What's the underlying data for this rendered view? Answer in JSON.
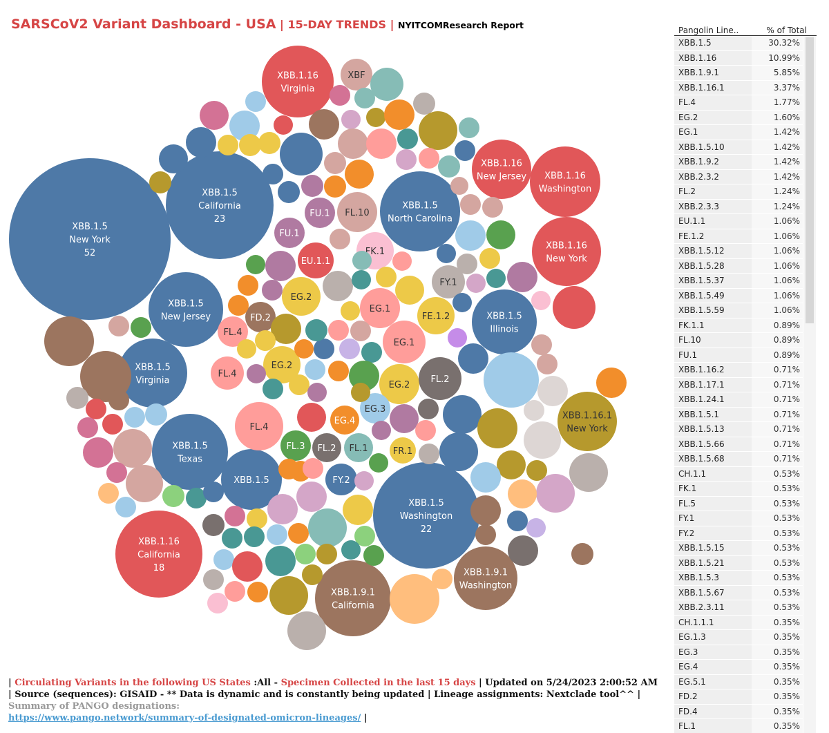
{
  "title": {
    "main": "SARSCoV2 Variant Dashboard - USA",
    "sep1": " | ",
    "trends": "15-DAY TRENDS",
    "sep2": " | ",
    "report": "NYITCOMResearch Report"
  },
  "colors": {
    "blue": "#4e79a7",
    "red": "#e15759",
    "mauve": "#b07aa1",
    "salmon": "#ff9d9a",
    "pink": "#fabfd2",
    "tan": "#d4a6a0",
    "yellow": "#edc948",
    "orange": "#f28e2b",
    "olive": "#b6992d",
    "brown": "#9c755f",
    "teal": "#499894",
    "green": "#59a14f",
    "gray": "#bab0ac",
    "darkgray": "#79706e",
    "lightblue": "#a0cbe8",
    "aqua": "#86bcb6",
    "lightgreen": "#8cd17d",
    "peach": "#ffbe7d",
    "purple": "#d4a6c8",
    "lavender": "#c7b3e6",
    "violet": "#c58ce8",
    "dustpink": "#d37295",
    "lightgray": "#ddd6d4"
  },
  "chart_data": {
    "type": "bubble",
    "labeled_bubbles": [
      {
        "variant": "XBB.1.5",
        "state": "New York",
        "count": "52",
        "color": "blue"
      },
      {
        "variant": "XBB.1.5",
        "state": "California",
        "count": "23",
        "color": "blue"
      },
      {
        "variant": "XBB.1.5",
        "state": "Washington",
        "count": "22",
        "color": "blue"
      },
      {
        "variant": "XBB.1.16",
        "state": "California",
        "count": "18",
        "color": "red"
      },
      {
        "variant": "XBB.1.5",
        "state": "North Carolina",
        "count": "",
        "color": "blue"
      },
      {
        "variant": "XBB.1.5",
        "state": "New Jersey",
        "count": "",
        "color": "blue"
      },
      {
        "variant": "XBB.1.5",
        "state": "Virginia",
        "count": "",
        "color": "blue"
      },
      {
        "variant": "XBB.1.5",
        "state": "Texas",
        "count": "",
        "color": "blue"
      },
      {
        "variant": "XBB.1.5",
        "state": "Illinois",
        "count": "",
        "color": "blue"
      },
      {
        "variant": "XBB.1.5",
        "state": "",
        "count": "",
        "color": "blue"
      },
      {
        "variant": "XBB.1.16",
        "state": "Virginia",
        "count": "",
        "color": "red"
      },
      {
        "variant": "XBB.1.16",
        "state": "New Jersey",
        "count": "",
        "color": "red"
      },
      {
        "variant": "XBB.1.16",
        "state": "Washington",
        "count": "",
        "color": "red"
      },
      {
        "variant": "XBB.1.16",
        "state": "New York",
        "count": "",
        "color": "red"
      },
      {
        "variant": "XBB.1.16.1",
        "state": "New York",
        "count": "",
        "color": "olive"
      },
      {
        "variant": "XBB.1.9.1",
        "state": "California",
        "count": "",
        "color": "brown"
      },
      {
        "variant": "XBB.1.9.1",
        "state": "Washington",
        "count": "",
        "color": "brown"
      },
      {
        "variant": "XBF",
        "state": "",
        "count": "",
        "color": "tan"
      },
      {
        "variant": "FU.1",
        "state": "",
        "count": "",
        "color": "mauve"
      },
      {
        "variant": "FU.1",
        "state": "",
        "count": "",
        "color": "mauve"
      },
      {
        "variant": "FL.10",
        "state": "",
        "count": "",
        "color": "tan"
      },
      {
        "variant": "FK.1",
        "state": "",
        "count": "",
        "color": "pink"
      },
      {
        "variant": "EU.1.1",
        "state": "",
        "count": "",
        "color": "red"
      },
      {
        "variant": "FY.1",
        "state": "",
        "count": "",
        "color": "gray"
      },
      {
        "variant": "EG.2",
        "state": "",
        "count": "",
        "color": "yellow"
      },
      {
        "variant": "EG.1",
        "state": "",
        "count": "",
        "color": "salmon"
      },
      {
        "variant": "FE.1.2",
        "state": "",
        "count": "",
        "color": "yellow"
      },
      {
        "variant": "FD.2",
        "state": "",
        "count": "",
        "color": "brown"
      },
      {
        "variant": "FL.4",
        "state": "",
        "count": "",
        "color": "salmon"
      },
      {
        "variant": "EG.1",
        "state": "",
        "count": "",
        "color": "salmon"
      },
      {
        "variant": "FL.4",
        "state": "",
        "count": "",
        "color": "salmon"
      },
      {
        "variant": "EG.2",
        "state": "",
        "count": "",
        "color": "yellow"
      },
      {
        "variant": "EG.2",
        "state": "",
        "count": "",
        "color": "yellow"
      },
      {
        "variant": "FL.2",
        "state": "",
        "count": "",
        "color": "darkgray"
      },
      {
        "variant": "FL.4",
        "state": "",
        "count": "",
        "color": "salmon"
      },
      {
        "variant": "EG.4",
        "state": "",
        "count": "",
        "color": "orange"
      },
      {
        "variant": "EG.3",
        "state": "",
        "count": "",
        "color": "lightblue"
      },
      {
        "variant": "FL.3",
        "state": "",
        "count": "",
        "color": "green"
      },
      {
        "variant": "FL.2",
        "state": "",
        "count": "",
        "color": "darkgray"
      },
      {
        "variant": "FL.1",
        "state": "",
        "count": "",
        "color": "aqua"
      },
      {
        "variant": "FR.1",
        "state": "",
        "count": "",
        "color": "yellow"
      },
      {
        "variant": "FY.2",
        "state": "",
        "count": "",
        "color": "blue"
      }
    ]
  },
  "table": {
    "header": {
      "lineage": "Pangolin Line..",
      "pct": "% of Total"
    },
    "rows": [
      {
        "lineage": "XBB.1.5",
        "pct": "30.32%"
      },
      {
        "lineage": "XBB.1.16",
        "pct": "10.99%"
      },
      {
        "lineage": "XBB.1.9.1",
        "pct": "5.85%"
      },
      {
        "lineage": "XBB.1.16.1",
        "pct": "3.37%"
      },
      {
        "lineage": "FL.4",
        "pct": "1.77%"
      },
      {
        "lineage": "EG.2",
        "pct": "1.60%"
      },
      {
        "lineage": "EG.1",
        "pct": "1.42%"
      },
      {
        "lineage": "XBB.1.5.10",
        "pct": "1.42%"
      },
      {
        "lineage": "XBB.1.9.2",
        "pct": "1.42%"
      },
      {
        "lineage": "XBB.2.3.2",
        "pct": "1.42%"
      },
      {
        "lineage": "FL.2",
        "pct": "1.24%"
      },
      {
        "lineage": "XBB.2.3.3",
        "pct": "1.24%"
      },
      {
        "lineage": "EU.1.1",
        "pct": "1.06%"
      },
      {
        "lineage": "FE.1.2",
        "pct": "1.06%"
      },
      {
        "lineage": "XBB.1.5.12",
        "pct": "1.06%"
      },
      {
        "lineage": "XBB.1.5.28",
        "pct": "1.06%"
      },
      {
        "lineage": "XBB.1.5.37",
        "pct": "1.06%"
      },
      {
        "lineage": "XBB.1.5.49",
        "pct": "1.06%"
      },
      {
        "lineage": "XBB.1.5.59",
        "pct": "1.06%"
      },
      {
        "lineage": "FK.1.1",
        "pct": "0.89%"
      },
      {
        "lineage": "FL.10",
        "pct": "0.89%"
      },
      {
        "lineage": "FU.1",
        "pct": "0.89%"
      },
      {
        "lineage": "XBB.1.16.2",
        "pct": "0.71%"
      },
      {
        "lineage": "XBB.1.17.1",
        "pct": "0.71%"
      },
      {
        "lineage": "XBB.1.24.1",
        "pct": "0.71%"
      },
      {
        "lineage": "XBB.1.5.1",
        "pct": "0.71%"
      },
      {
        "lineage": "XBB.1.5.13",
        "pct": "0.71%"
      },
      {
        "lineage": "XBB.1.5.66",
        "pct": "0.71%"
      },
      {
        "lineage": "XBB.1.5.68",
        "pct": "0.71%"
      },
      {
        "lineage": "CH.1.1",
        "pct": "0.53%"
      },
      {
        "lineage": "FK.1",
        "pct": "0.53%"
      },
      {
        "lineage": "FL.5",
        "pct": "0.53%"
      },
      {
        "lineage": "FY.1",
        "pct": "0.53%"
      },
      {
        "lineage": "FY.2",
        "pct": "0.53%"
      },
      {
        "lineage": "XBB.1.5.15",
        "pct": "0.53%"
      },
      {
        "lineage": "XBB.1.5.21",
        "pct": "0.53%"
      },
      {
        "lineage": "XBB.1.5.3",
        "pct": "0.53%"
      },
      {
        "lineage": "XBB.1.5.67",
        "pct": "0.53%"
      },
      {
        "lineage": "XBB.2.3.11",
        "pct": "0.53%"
      },
      {
        "lineage": "CH.1.1.1",
        "pct": "0.35%"
      },
      {
        "lineage": "EG.1.3",
        "pct": "0.35%"
      },
      {
        "lineage": "EG.3",
        "pct": "0.35%"
      },
      {
        "lineage": "EG.4",
        "pct": "0.35%"
      },
      {
        "lineage": "EG.5.1",
        "pct": "0.35%"
      },
      {
        "lineage": "FD.2",
        "pct": "0.35%"
      },
      {
        "lineage": "FD.4",
        "pct": "0.35%"
      },
      {
        "lineage": "FL.1",
        "pct": "0.35%"
      }
    ]
  },
  "footer": {
    "p0": "| ",
    "p1": "Circulating Variants in the following US States",
    "p2": " :All - ",
    "p3": "Specimen Collected in the last 15 days",
    "p4": " | Updated on 5/24/2023 2:00:52 AM | Source (sequences): GISAID - ** Data is dynamic and is constantly being updated | Lineage assignments: Nextclade tool^^ | ",
    "p5": "Summary of PANGO designations:",
    "link": "https://www.pango.network/summary-of-designated-omicron-lineages/",
    "p6": " |"
  }
}
